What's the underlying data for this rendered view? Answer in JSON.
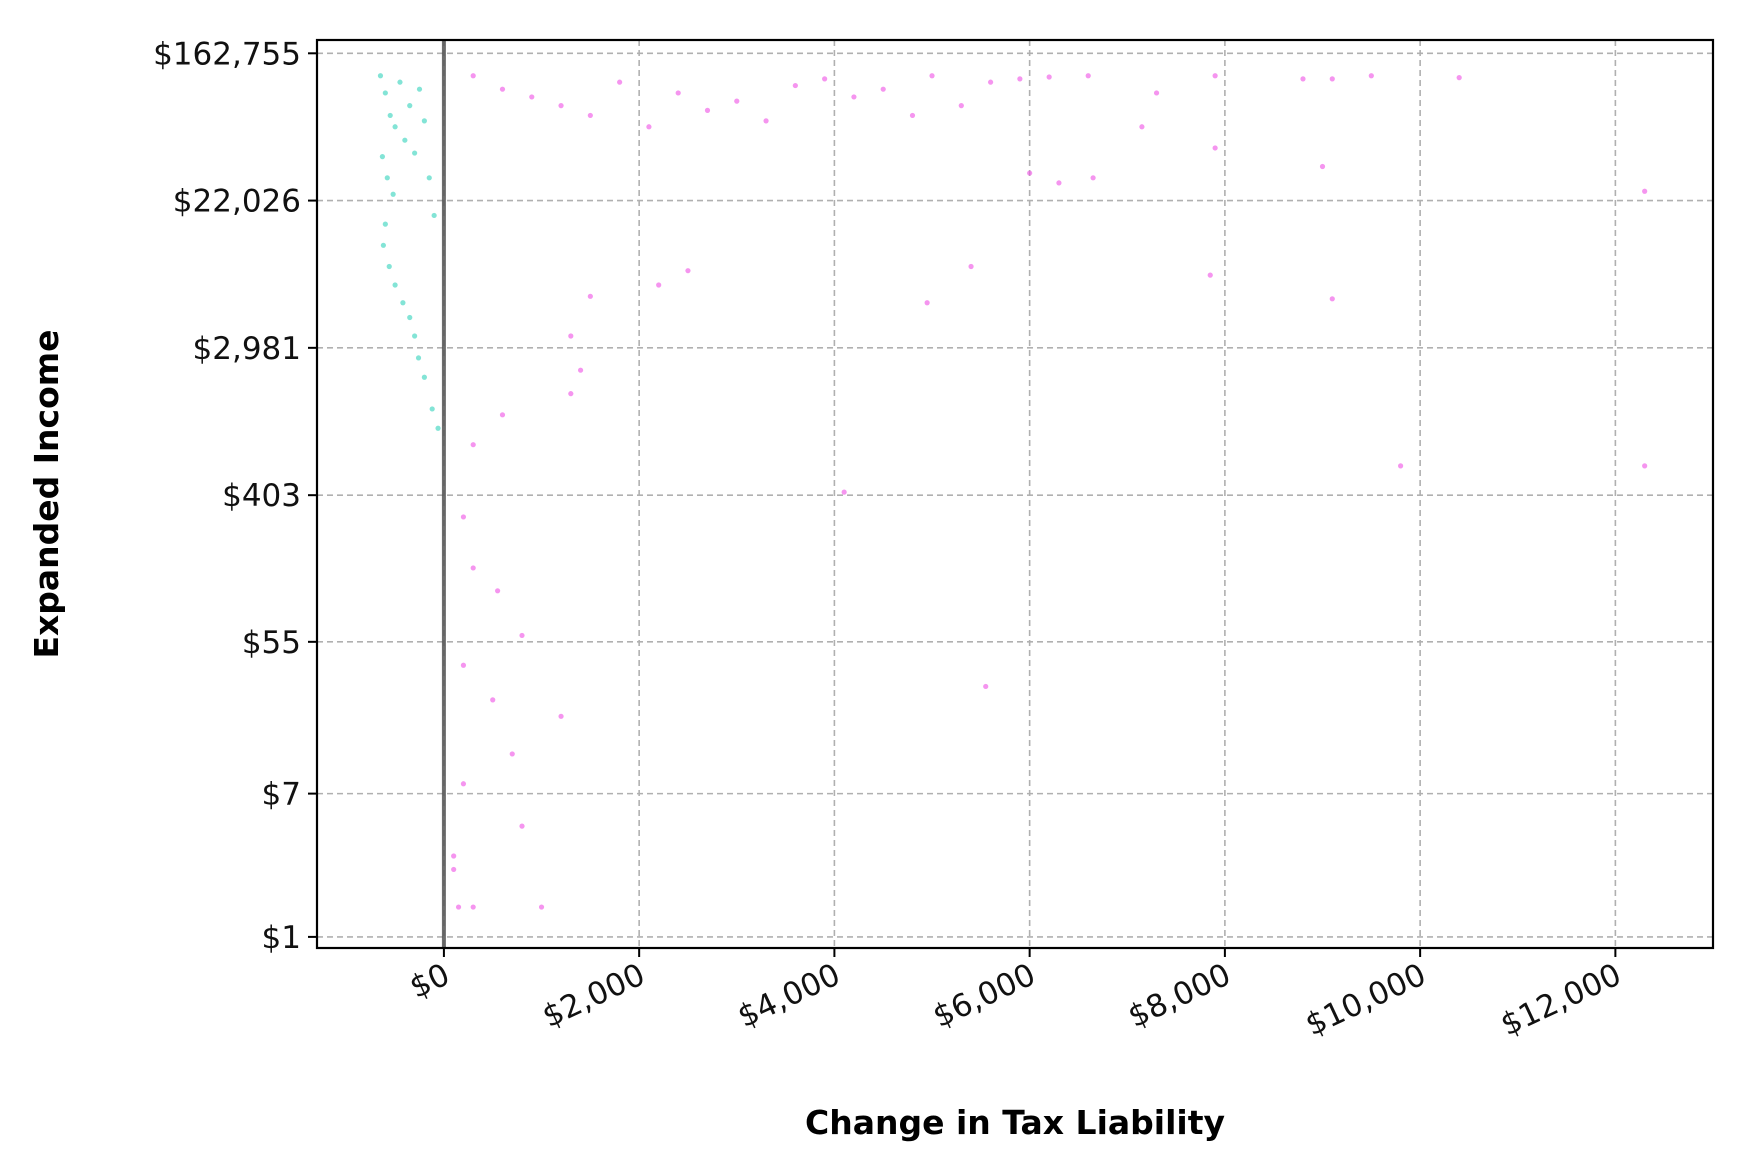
{
  "chart_data": {
    "type": "scatter",
    "title": "",
    "xlabel": "Change in Tax Liability",
    "ylabel": "Expanded Income",
    "xlim": [
      -1300,
      13000
    ],
    "ylim": [
      0.86,
      195000
    ],
    "yscale": "log",
    "grid": true,
    "x_ticks": [
      0,
      2000,
      4000,
      6000,
      8000,
      10000,
      12000
    ],
    "x_tick_labels": [
      "$0",
      "$2,000",
      "$4,000",
      "$6,000",
      "$8,000",
      "$10,000",
      "$12,000"
    ],
    "y_ticks": [
      1,
      7,
      55,
      403,
      2981,
      22026,
      162755
    ],
    "y_tick_labels": [
      "$1",
      "$7",
      "$55",
      "$403",
      "$2,981",
      "$22,026",
      "$162,755"
    ],
    "reference_line_x": 0,
    "colors": {
      "decrease": "#40d6c0",
      "increase": "#f05ce6",
      "reference": "#555555",
      "grid": "#b0b0b0"
    },
    "series": [
      {
        "color": "#40d6c0",
        "points": [
          [
            -650,
            120000
          ],
          [
            -600,
            95000
          ],
          [
            -550,
            70000
          ],
          [
            -500,
            60000
          ],
          [
            -450,
            110000
          ],
          [
            -400,
            50000
          ],
          [
            -350,
            80000
          ],
          [
            -300,
            42000
          ],
          [
            -250,
            100000
          ],
          [
            -200,
            65000
          ],
          [
            -150,
            30000
          ],
          [
            -100,
            18000
          ],
          [
            -630,
            40000
          ],
          [
            -580,
            30000
          ],
          [
            -520,
            24000
          ],
          [
            -600,
            16000
          ],
          [
            -620,
            12000
          ],
          [
            -560,
            9000
          ],
          [
            -500,
            7000
          ],
          [
            -420,
            5500
          ],
          [
            -350,
            4500
          ],
          [
            -300,
            3500
          ],
          [
            -260,
            2600
          ],
          [
            -200,
            2000
          ],
          [
            -120,
            1300
          ],
          [
            -60,
            1000
          ]
        ]
      },
      {
        "color": "#f05ce6",
        "points": [
          [
            300,
            120000
          ],
          [
            600,
            100000
          ],
          [
            900,
            90000
          ],
          [
            1200,
            80000
          ],
          [
            1500,
            70000
          ],
          [
            1800,
            110000
          ],
          [
            2100,
            60000
          ],
          [
            2400,
            95000
          ],
          [
            2700,
            75000
          ],
          [
            3000,
            85000
          ],
          [
            3300,
            65000
          ],
          [
            3600,
            105000
          ],
          [
            3900,
            115000
          ],
          [
            4200,
            90000
          ],
          [
            4500,
            100000
          ],
          [
            4800,
            70000
          ],
          [
            5000,
            120000
          ],
          [
            5300,
            80000
          ],
          [
            5600,
            110000
          ],
          [
            5900,
            115000
          ],
          [
            6200,
            118000
          ],
          [
            6600,
            120000
          ],
          [
            7300,
            95000
          ],
          [
            7900,
            120000
          ],
          [
            8800,
            115000
          ],
          [
            9100,
            115000
          ],
          [
            9500,
            120000
          ],
          [
            10400,
            117000
          ],
          [
            6000,
            32000
          ],
          [
            6300,
            28000
          ],
          [
            6650,
            30000
          ],
          [
            7150,
            60000
          ],
          [
            7900,
            45000
          ],
          [
            9000,
            35000
          ],
          [
            12300,
            25000
          ],
          [
            5400,
            9000
          ],
          [
            4950,
            5500
          ],
          [
            7850,
            8000
          ],
          [
            9100,
            5800
          ],
          [
            2500,
            8500
          ],
          [
            2200,
            7000
          ],
          [
            1500,
            6000
          ],
          [
            1300,
            3500
          ],
          [
            1400,
            2200
          ],
          [
            1300,
            1600
          ],
          [
            9800,
            600
          ],
          [
            12300,
            600
          ],
          [
            4100,
            420
          ],
          [
            600,
            1200
          ],
          [
            300,
            800
          ],
          [
            200,
            300
          ],
          [
            300,
            150
          ],
          [
            550,
            110
          ],
          [
            800,
            60
          ],
          [
            200,
            40
          ],
          [
            1200,
            20
          ],
          [
            500,
            25
          ],
          [
            5550,
            30
          ],
          [
            700,
            12
          ],
          [
            800,
            4.5
          ],
          [
            100,
            2.5
          ],
          [
            300,
            1.5
          ],
          [
            1000,
            1.5
          ],
          [
            150,
            1.5
          ],
          [
            100,
            3
          ],
          [
            200,
            8
          ]
        ]
      }
    ]
  }
}
